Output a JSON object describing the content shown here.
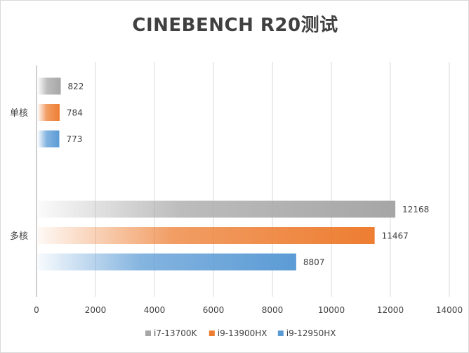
{
  "chart_data": {
    "type": "bar",
    "orientation": "horizontal",
    "title": "CINEBENCH R20测试",
    "categories": [
      "单核",
      "多核"
    ],
    "series": [
      {
        "name": "i7-13700K",
        "values": [
          822,
          12168
        ],
        "color": "#a6a6a6"
      },
      {
        "name": "i9-13900HX",
        "values": [
          784,
          11467
        ],
        "color": "#ed7d31"
      },
      {
        "name": "i9-12950HX",
        "values": [
          773,
          8807
        ],
        "color": "#5b9bd5"
      }
    ],
    "xlim": [
      0,
      14000
    ],
    "x_ticks": [
      "0",
      "2000",
      "4000",
      "6000",
      "8000",
      "10000",
      "12000",
      "14000"
    ],
    "gridlines": true,
    "legend_position": "bottom"
  }
}
